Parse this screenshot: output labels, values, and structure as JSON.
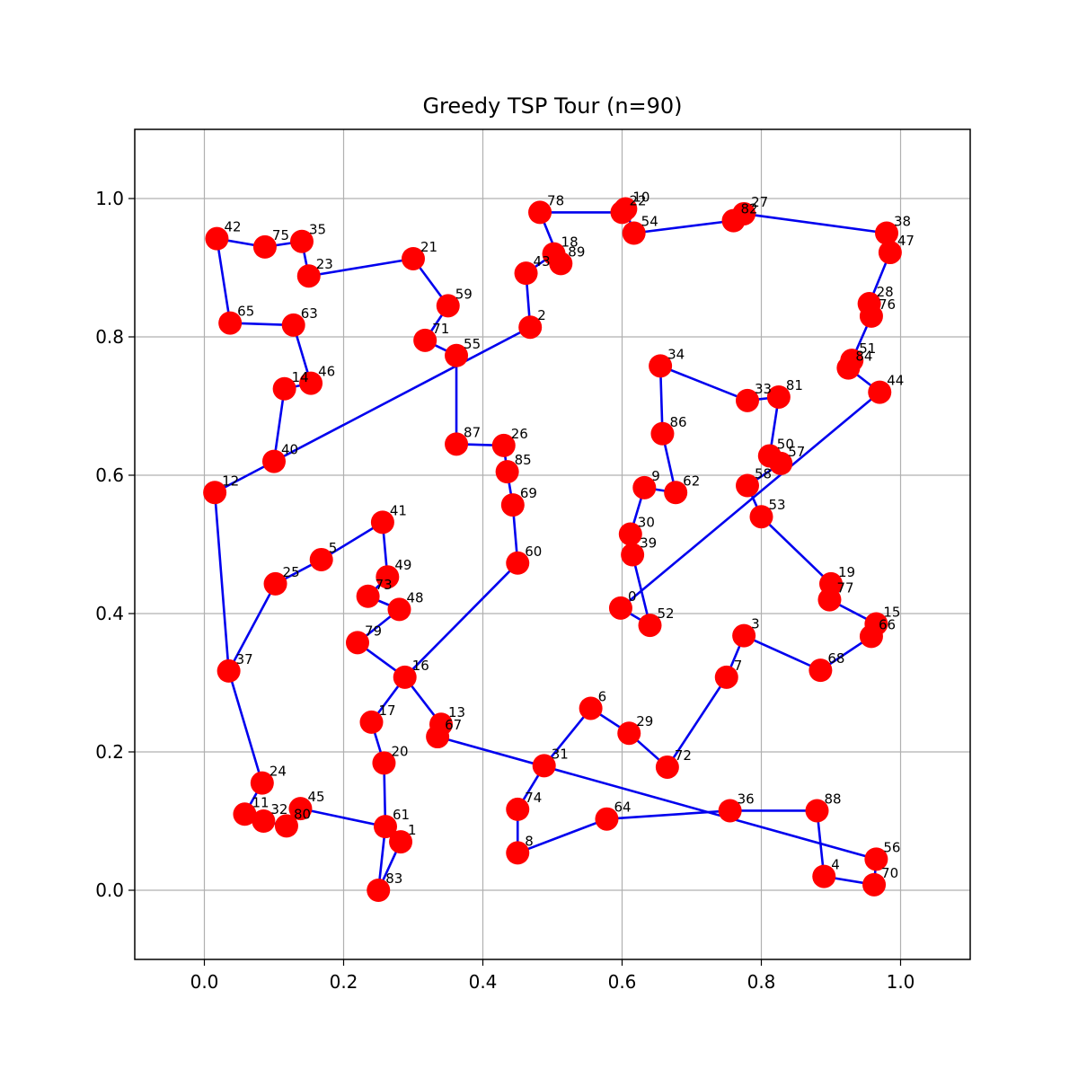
{
  "chart_data": {
    "type": "scatter",
    "title": "Greedy TSP Tour (n=90)",
    "xlabel": "",
    "ylabel": "",
    "xlim": [
      -0.1,
      1.1
    ],
    "ylim": [
      -0.1,
      1.1
    ],
    "xticks": [
      "0.0",
      "0.2",
      "0.4",
      "0.6",
      "0.8",
      "1.0"
    ],
    "xtick_values": [
      0.0,
      0.2,
      0.4,
      0.6,
      0.8,
      1.0
    ],
    "yticks": [
      "0.0",
      "0.2",
      "0.4",
      "0.6",
      "0.8",
      "1.0"
    ],
    "ytick_values": [
      0.0,
      0.2,
      0.4,
      0.6,
      0.8,
      1.0
    ],
    "grid": true,
    "point_color": "#ff0000",
    "edge_color": "#0000ee",
    "nodes": [
      {
        "id": "0",
        "x": 0.598,
        "y": 0.408
      },
      {
        "id": "1",
        "x": 0.282,
        "y": 0.07
      },
      {
        "id": "2",
        "x": 0.468,
        "y": 0.814
      },
      {
        "id": "3",
        "x": 0.775,
        "y": 0.368
      },
      {
        "id": "4",
        "x": 0.89,
        "y": 0.02
      },
      {
        "id": "5",
        "x": 0.168,
        "y": 0.478
      },
      {
        "id": "6",
        "x": 0.555,
        "y": 0.263
      },
      {
        "id": "7",
        "x": 0.75,
        "y": 0.308
      },
      {
        "id": "8",
        "x": 0.45,
        "y": 0.054
      },
      {
        "id": "9",
        "x": 0.632,
        "y": 0.582
      },
      {
        "id": "10",
        "x": 0.605,
        "y": 0.985
      },
      {
        "id": "11",
        "x": 0.058,
        "y": 0.11
      },
      {
        "id": "12",
        "x": 0.015,
        "y": 0.575
      },
      {
        "id": "13",
        "x": 0.34,
        "y": 0.24
      },
      {
        "id": "14",
        "x": 0.115,
        "y": 0.725
      },
      {
        "id": "15",
        "x": 0.965,
        "y": 0.385
      },
      {
        "id": "16",
        "x": 0.288,
        "y": 0.308
      },
      {
        "id": "17",
        "x": 0.24,
        "y": 0.243
      },
      {
        "id": "18",
        "x": 0.502,
        "y": 0.92
      },
      {
        "id": "19",
        "x": 0.9,
        "y": 0.443
      },
      {
        "id": "20",
        "x": 0.258,
        "y": 0.184
      },
      {
        "id": "21",
        "x": 0.3,
        "y": 0.913
      },
      {
        "id": "22",
        "x": 0.6,
        "y": 0.98
      },
      {
        "id": "23",
        "x": 0.15,
        "y": 0.888
      },
      {
        "id": "24",
        "x": 0.083,
        "y": 0.155
      },
      {
        "id": "25",
        "x": 0.102,
        "y": 0.443
      },
      {
        "id": "26",
        "x": 0.43,
        "y": 0.643
      },
      {
        "id": "27",
        "x": 0.775,
        "y": 0.978
      },
      {
        "id": "28",
        "x": 0.955,
        "y": 0.848
      },
      {
        "id": "29",
        "x": 0.61,
        "y": 0.227
      },
      {
        "id": "30",
        "x": 0.612,
        "y": 0.515
      },
      {
        "id": "31",
        "x": 0.488,
        "y": 0.18
      },
      {
        "id": "32",
        "x": 0.085,
        "y": 0.1
      },
      {
        "id": "33",
        "x": 0.78,
        "y": 0.708
      },
      {
        "id": "34",
        "x": 0.655,
        "y": 0.758
      },
      {
        "id": "35",
        "x": 0.14,
        "y": 0.938
      },
      {
        "id": "36",
        "x": 0.755,
        "y": 0.115
      },
      {
        "id": "37",
        "x": 0.035,
        "y": 0.317
      },
      {
        "id": "38",
        "x": 0.98,
        "y": 0.95
      },
      {
        "id": "39",
        "x": 0.615,
        "y": 0.485
      },
      {
        "id": "40",
        "x": 0.1,
        "y": 0.62
      },
      {
        "id": "41",
        "x": 0.256,
        "y": 0.532
      },
      {
        "id": "42",
        "x": 0.018,
        "y": 0.942
      },
      {
        "id": "43",
        "x": 0.462,
        "y": 0.892
      },
      {
        "id": "44",
        "x": 0.97,
        "y": 0.72
      },
      {
        "id": "45",
        "x": 0.138,
        "y": 0.118
      },
      {
        "id": "46",
        "x": 0.153,
        "y": 0.733
      },
      {
        "id": "47",
        "x": 0.985,
        "y": 0.922
      },
      {
        "id": "48",
        "x": 0.28,
        "y": 0.406
      },
      {
        "id": "49",
        "x": 0.263,
        "y": 0.453
      },
      {
        "id": "50",
        "x": 0.812,
        "y": 0.628
      },
      {
        "id": "51",
        "x": 0.93,
        "y": 0.766
      },
      {
        "id": "52",
        "x": 0.64,
        "y": 0.383
      },
      {
        "id": "53",
        "x": 0.8,
        "y": 0.54
      },
      {
        "id": "54",
        "x": 0.617,
        "y": 0.95
      },
      {
        "id": "55",
        "x": 0.362,
        "y": 0.773
      },
      {
        "id": "56",
        "x": 0.965,
        "y": 0.045
      },
      {
        "id": "57",
        "x": 0.828,
        "y": 0.617
      },
      {
        "id": "58",
        "x": 0.78,
        "y": 0.585
      },
      {
        "id": "59",
        "x": 0.35,
        "y": 0.845
      },
      {
        "id": "60",
        "x": 0.45,
        "y": 0.473
      },
      {
        "id": "61",
        "x": 0.26,
        "y": 0.092
      },
      {
        "id": "62",
        "x": 0.677,
        "y": 0.575
      },
      {
        "id": "63",
        "x": 0.128,
        "y": 0.817
      },
      {
        "id": "64",
        "x": 0.578,
        "y": 0.103
      },
      {
        "id": "65",
        "x": 0.037,
        "y": 0.82
      },
      {
        "id": "66",
        "x": 0.958,
        "y": 0.367
      },
      {
        "id": "67",
        "x": 0.335,
        "y": 0.222
      },
      {
        "id": "68",
        "x": 0.885,
        "y": 0.318
      },
      {
        "id": "69",
        "x": 0.443,
        "y": 0.557
      },
      {
        "id": "70",
        "x": 0.962,
        "y": 0.008
      },
      {
        "id": "71",
        "x": 0.317,
        "y": 0.795
      },
      {
        "id": "72",
        "x": 0.665,
        "y": 0.178
      },
      {
        "id": "73",
        "x": 0.235,
        "y": 0.425
      },
      {
        "id": "74",
        "x": 0.45,
        "y": 0.117
      },
      {
        "id": "75",
        "x": 0.087,
        "y": 0.93
      },
      {
        "id": "76",
        "x": 0.958,
        "y": 0.83
      },
      {
        "id": "77",
        "x": 0.898,
        "y": 0.42
      },
      {
        "id": "78",
        "x": 0.482,
        "y": 0.98
      },
      {
        "id": "79",
        "x": 0.22,
        "y": 0.358
      },
      {
        "id": "80",
        "x": 0.118,
        "y": 0.093
      },
      {
        "id": "81",
        "x": 0.825,
        "y": 0.713
      },
      {
        "id": "82",
        "x": 0.76,
        "y": 0.968
      },
      {
        "id": "83",
        "x": 0.25,
        "y": 0.0
      },
      {
        "id": "84",
        "x": 0.925,
        "y": 0.755
      },
      {
        "id": "85",
        "x": 0.435,
        "y": 0.605
      },
      {
        "id": "86",
        "x": 0.658,
        "y": 0.66
      },
      {
        "id": "87",
        "x": 0.362,
        "y": 0.645
      },
      {
        "id": "88",
        "x": 0.88,
        "y": 0.115
      },
      {
        "id": "89",
        "x": 0.512,
        "y": 0.906
      }
    ],
    "tour": [
      "12",
      "40",
      "2",
      "43",
      "18",
      "89",
      "78",
      "22",
      "10",
      "54",
      "82",
      "27",
      "38",
      "47",
      "28",
      "76",
      "51",
      "84",
      "44",
      "0",
      "52",
      "39",
      "30",
      "9",
      "62",
      "86",
      "34",
      "33",
      "81",
      "50",
      "57",
      "58",
      "53",
      "19",
      "77",
      "15",
      "66",
      "68",
      "3",
      "7",
      "72",
      "29",
      "6",
      "31",
      "74",
      "8",
      "64",
      "36",
      "88",
      "4",
      "70",
      "56",
      "67",
      "13",
      "16",
      "60",
      "69",
      "85",
      "26",
      "87",
      "55",
      "71",
      "59",
      "21",
      "23",
      "35",
      "75",
      "42",
      "65",
      "63",
      "46",
      "14",
      "40"
    ],
    "tour_tail": [
      "12",
      "37",
      "25",
      "5",
      "41",
      "49",
      "73",
      "48",
      "79",
      "16",
      "17",
      "20",
      "61",
      "1",
      "83",
      "61",
      "45",
      "80",
      "32",
      "11",
      "24",
      "37"
    ]
  }
}
